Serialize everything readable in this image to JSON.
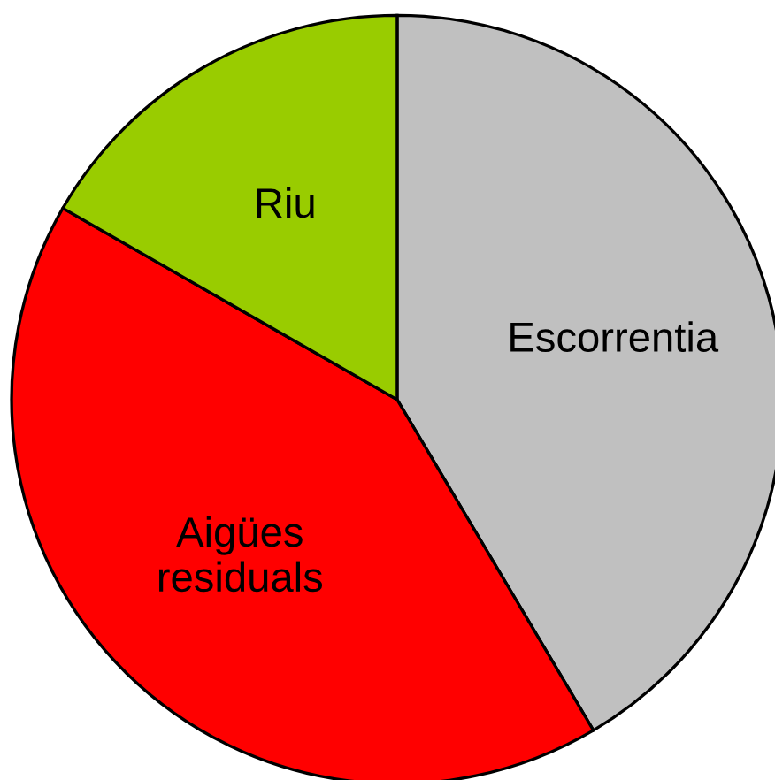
{
  "chart_data": {
    "type": "pie",
    "categories": [
      "Escorrentia",
      "Aigües\nresiduals",
      "Riu"
    ],
    "values": [
      41.5,
      41.8,
      16.7
    ],
    "colors": [
      "#c0c0c0",
      "#ff0000",
      "#99cc00"
    ]
  }
}
